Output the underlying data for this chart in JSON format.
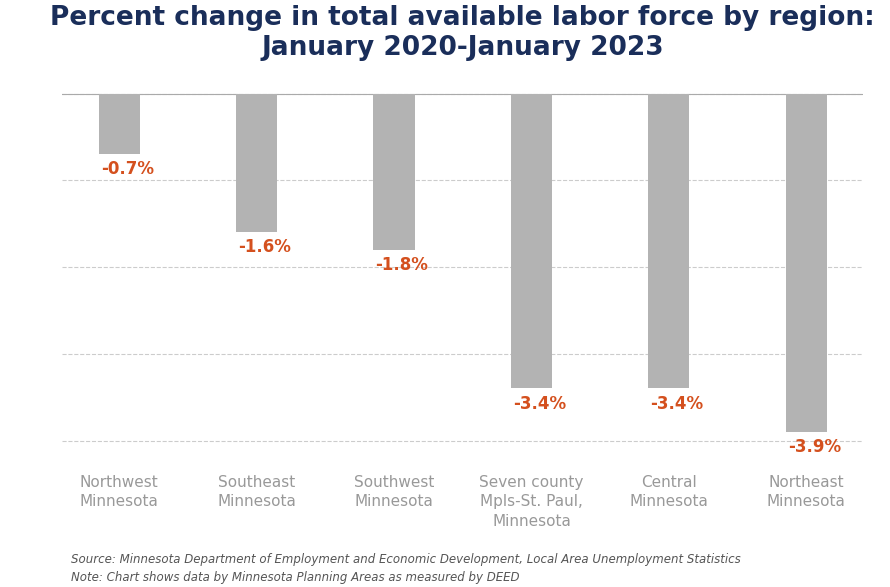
{
  "title": "Percent change in total available labor force by region:\nJanuary 2020-January 2023",
  "categories": [
    "Northwest\nMinnesota",
    "Southeast\nMinnesota",
    "Southwest\nMinnesota",
    "Seven county\nMpls-St. Paul,\nMinnesota",
    "Central\nMinnesota",
    "Northeast\nMinnesota"
  ],
  "values": [
    -0.7,
    -1.6,
    -1.8,
    -3.4,
    -3.4,
    -3.9
  ],
  "bar_color": "#b3b3b3",
  "label_color": "#d4501e",
  "title_color": "#1a2e5a",
  "axis_label_color": "#999999",
  "background_color": "#ffffff",
  "ylim": [
    -4.2,
    0.2
  ],
  "yticks": [
    0.0,
    -1.0,
    -2.0,
    -3.0,
    -4.0
  ],
  "grid_color": "#cccccc",
  "source_text": "Source: Minnesota Department of Employment and Economic Development, Local Area Unemployment Statistics\nNote: Chart shows data by Minnesota Planning Areas as measured by DEED",
  "title_fontsize": 19,
  "label_fontsize": 12,
  "tick_label_fontsize": 11,
  "source_fontsize": 8.5
}
